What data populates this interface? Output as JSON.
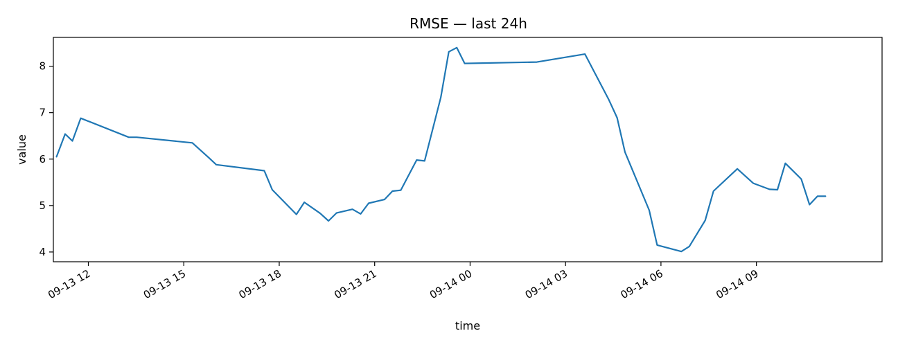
{
  "chart_data": {
    "type": "line",
    "title": "RMSE — last 24h",
    "xlabel": "time",
    "ylabel": "value",
    "line_color": "#1f77b4",
    "grid": false,
    "x_ticks": [
      {
        "hour": 12,
        "label": "09-13 12"
      },
      {
        "hour": 15,
        "label": "09-13 15"
      },
      {
        "hour": 18,
        "label": "09-13 18"
      },
      {
        "hour": 21,
        "label": "09-13 21"
      },
      {
        "hour": 24,
        "label": "09-14 00"
      },
      {
        "hour": 27,
        "label": "09-14 03"
      },
      {
        "hour": 30,
        "label": "09-14 06"
      },
      {
        "hour": 33,
        "label": "09-14 09"
      }
    ],
    "y_ticks": [
      4,
      5,
      6,
      7,
      8
    ],
    "xlim": [
      10.9,
      36.95
    ],
    "ylim": [
      3.79,
      8.62
    ],
    "x_unit": "hours since 09-13 00:00",
    "series": [
      {
        "name": "RMSE",
        "x": [
          11.0,
          11.27,
          11.5,
          11.76,
          13.27,
          13.52,
          15.27,
          15.77,
          16.02,
          17.53,
          17.78,
          18.54,
          18.79,
          19.29,
          19.55,
          19.8,
          20.3,
          20.56,
          20.81,
          21.31,
          21.56,
          21.82,
          22.32,
          22.57,
          23.08,
          23.33,
          23.58,
          23.83,
          26.1,
          27.61,
          28.36,
          28.62,
          28.87,
          29.63,
          29.88,
          30.64,
          30.89,
          31.39,
          31.65,
          32.4,
          32.9,
          33.41,
          33.66,
          33.91,
          34.41,
          34.67,
          34.92,
          35.17
        ],
        "y": [
          6.05,
          6.54,
          6.39,
          6.88,
          6.47,
          6.47,
          6.35,
          6.04,
          5.88,
          5.75,
          5.34,
          4.81,
          5.07,
          4.83,
          4.67,
          4.84,
          4.92,
          4.82,
          5.05,
          5.13,
          5.31,
          5.33,
          5.98,
          5.96,
          7.33,
          8.31,
          8.4,
          8.06,
          8.09,
          8.26,
          7.28,
          6.89,
          6.15,
          4.9,
          4.15,
          4.01,
          4.12,
          4.68,
          5.31,
          5.79,
          5.48,
          5.35,
          5.34,
          5.91,
          5.57,
          5.02,
          5.2,
          5.2
        ]
      }
    ]
  }
}
